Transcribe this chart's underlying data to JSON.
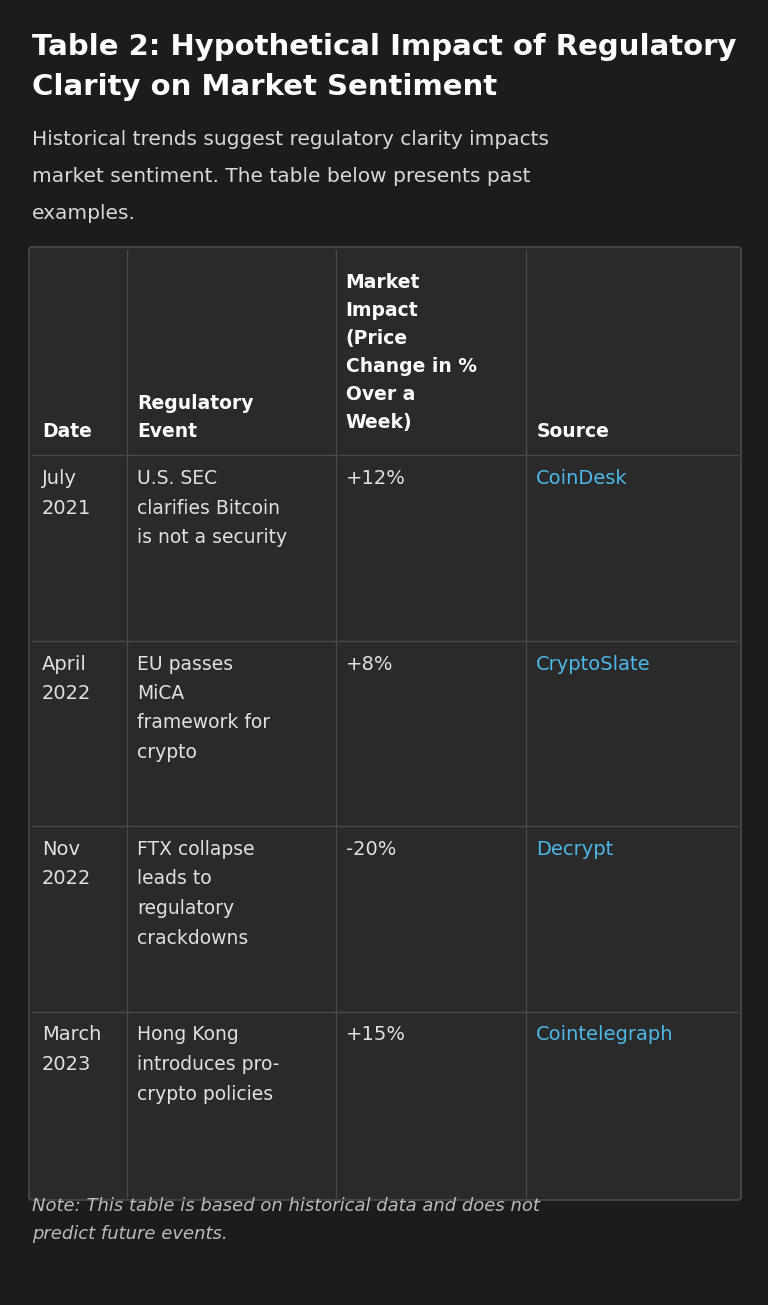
{
  "title_line1": "Table 2: Hypothetical Impact of Regulatory",
  "title_line2": "Clarity on Market Sentiment",
  "subtitle_lines": [
    "Historical trends suggest regulatory clarity impacts",
    "market sentiment. The table below presents past",
    "examples."
  ],
  "bg_color": "#1c1c1c",
  "title_color": "#ffffff",
  "subtitle_color": "#d8d8d8",
  "table_bg": "#2a2a2a",
  "table_border_color": "#4a4a4a",
  "header_text_color": "#ffffff",
  "cell_text_color": "#e0e0e0",
  "link_color": "#4db8e8",
  "note_color": "#bbbbbb",
  "rows": [
    {
      "date": "July\n2021",
      "event": "U.S. SEC\nclarifies Bitcoin\nis not a security",
      "impact": "+12%",
      "source": "CoinDesk"
    },
    {
      "date": "April\n2022",
      "event": "EU passes\nMiCA\nframework for\ncrypto",
      "impact": "+8%",
      "source": "CryptoSlate"
    },
    {
      "date": "Nov\n2022",
      "event": "FTX collapse\nleads to\nregulatory\ncrackdowns",
      "impact": "-20%",
      "source": "Decrypt"
    },
    {
      "date": "March\n2023",
      "event": "Hong Kong\nintroduces pro-\ncrypto policies",
      "impact": "+15%",
      "source": "Cointelegraph"
    }
  ],
  "note_line1": "Note: This table is based on historical data and does not",
  "note_line2": "predict future events."
}
